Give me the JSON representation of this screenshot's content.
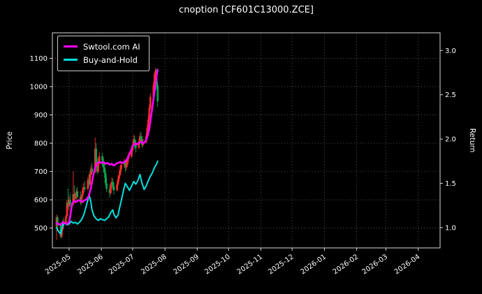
{
  "title": "cnoption [CF601C13000.ZCE]",
  "axes": {
    "left_label": "Price",
    "right_label": "Return"
  },
  "legend": {
    "items": [
      {
        "label": "Swtool.com AI",
        "color": "#ff00ff"
      },
      {
        "label": "Buy-and-Hold",
        "color": "#00e0e0"
      }
    ]
  },
  "chart_data": {
    "type": "candlestick+line",
    "title": "cnoption [CF601C13000.ZCE]",
    "background": "#000000",
    "grid": true,
    "legend_position": "upper left",
    "x_axis": {
      "range_days": [
        0,
        372
      ],
      "epoch": "2025-04-15",
      "tick_days": [
        16,
        47,
        77,
        108,
        139,
        169,
        200,
        230,
        261,
        292,
        320,
        351
      ],
      "tick_labels": [
        "2025-05",
        "2025-06",
        "2025-07",
        "2025-08",
        "2025-09",
        "2025-10",
        "2025-11",
        "2025-12",
        "2026-01",
        "2026-02",
        "2026-03",
        "2026-04"
      ]
    },
    "price_axis": {
      "label": "Price",
      "range": [
        430,
        1190
      ],
      "ticks": [
        500,
        600,
        700,
        800,
        900,
        1000,
        1100
      ],
      "tick_labels": [
        "500",
        "600",
        "700",
        "800",
        "900",
        "1000",
        "1100"
      ]
    },
    "return_axis": {
      "label": "Return",
      "range": [
        0.77,
        3.2
      ],
      "ticks": [
        1.0,
        1.5,
        2.0,
        2.5,
        3.0
      ],
      "tick_labels": [
        "1.0",
        "1.5",
        "2.0",
        "2.5",
        "3.0"
      ]
    },
    "candles": {
      "up_color": "#ff2b2b",
      "down_color": "#00a550",
      "columns": [
        "day",
        "open",
        "high",
        "low",
        "close"
      ],
      "data": [
        [
          4,
          505,
          548,
          458,
          538
        ],
        [
          5,
          538,
          544,
          498,
          508
        ],
        [
          8,
          510,
          520,
          463,
          470
        ],
        [
          9,
          470,
          502,
          465,
          496
        ],
        [
          10,
          496,
          530,
          490,
          524
        ],
        [
          11,
          524,
          536,
          504,
          514
        ],
        [
          13,
          514,
          546,
          510,
          542
        ],
        [
          14,
          542,
          600,
          536,
          590
        ],
        [
          15,
          590,
          640,
          568,
          578
        ],
        [
          16,
          578,
          612,
          560,
          600
        ],
        [
          17,
          600,
          622,
          574,
          584
        ],
        [
          20,
          584,
          700,
          580,
          620
        ],
        [
          21,
          620,
          650,
          594,
          604
        ],
        [
          22,
          604,
          626,
          586,
          616
        ],
        [
          23,
          616,
          640,
          600,
          630
        ],
        [
          24,
          630,
          646,
          604,
          610
        ],
        [
          27,
          610,
          630,
          580,
          590
        ],
        [
          28,
          590,
          620,
          584,
          614
        ],
        [
          29,
          614,
          646,
          608,
          636
        ],
        [
          30,
          636,
          660,
          620,
          644
        ],
        [
          31,
          644,
          666,
          628,
          638
        ],
        [
          34,
          638,
          680,
          634,
          670
        ],
        [
          35,
          670,
          692,
          644,
          654
        ],
        [
          36,
          654,
          700,
          650,
          690
        ],
        [
          37,
          690,
          722,
          680,
          710
        ],
        [
          38,
          710,
          730,
          688,
          698
        ],
        [
          41,
          698,
          820,
          694,
          780
        ],
        [
          42,
          780,
          800,
          718,
          728
        ],
        [
          43,
          728,
          750,
          690,
          700
        ],
        [
          44,
          700,
          746,
          694,
          734
        ],
        [
          45,
          734,
          770,
          724,
          754
        ],
        [
          48,
          754,
          766,
          718,
          738
        ],
        [
          49,
          738,
          750,
          700,
          714
        ],
        [
          50,
          714,
          730,
          678,
          694
        ],
        [
          51,
          694,
          706,
          648,
          658
        ],
        [
          52,
          658,
          680,
          628,
          638
        ],
        [
          55,
          638,
          656,
          608,
          624
        ],
        [
          56,
          624,
          660,
          618,
          648
        ],
        [
          57,
          648,
          680,
          640,
          664
        ],
        [
          58,
          664,
          676,
          634,
          648
        ],
        [
          59,
          648,
          660,
          618,
          634
        ],
        [
          62,
          634,
          666,
          630,
          654
        ],
        [
          63,
          654,
          686,
          648,
          674
        ],
        [
          64,
          674,
          700,
          664,
          688
        ],
        [
          65,
          688,
          720,
          684,
          708
        ],
        [
          66,
          708,
          736,
          698,
          724
        ],
        [
          69,
          724,
          746,
          714,
          734
        ],
        [
          70,
          734,
          740,
          698,
          714
        ],
        [
          71,
          714,
          736,
          704,
          724
        ],
        [
          72,
          724,
          756,
          718,
          744
        ],
        [
          73,
          744,
          766,
          734,
          754
        ],
        [
          76,
          754,
          790,
          748,
          774
        ],
        [
          77,
          774,
          806,
          768,
          794
        ],
        [
          78,
          794,
          830,
          788,
          814
        ],
        [
          79,
          814,
          826,
          778,
          794
        ],
        [
          80,
          794,
          810,
          768,
          784
        ],
        [
          83,
          784,
          816,
          778,
          804
        ],
        [
          84,
          804,
          836,
          798,
          824
        ],
        [
          85,
          824,
          840,
          798,
          814
        ],
        [
          86,
          814,
          826,
          784,
          794
        ],
        [
          87,
          794,
          816,
          788,
          804
        ],
        [
          90,
          804,
          836,
          798,
          824
        ],
        [
          91,
          824,
          866,
          818,
          854
        ],
        [
          92,
          854,
          896,
          848,
          884
        ],
        [
          93,
          884,
          936,
          878,
          924
        ],
        [
          94,
          924,
          976,
          918,
          964
        ],
        [
          97,
          964,
          1016,
          958,
          1004
        ],
        [
          98,
          1004,
          1052,
          998,
          1044
        ],
        [
          99,
          1044,
          1066,
          1018,
          1058
        ],
        [
          100,
          1058,
          1064,
          988,
          1004
        ],
        [
          101,
          1004,
          1016,
          928,
          948
        ]
      ]
    },
    "series": [
      {
        "name": "Swtool.com AI",
        "color": "#ff00ff",
        "axis": "return",
        "line_width": 2.6,
        "points": [
          [
            4,
            1.05
          ],
          [
            6,
            1.04
          ],
          [
            8,
            1.03
          ],
          [
            10,
            1.06
          ],
          [
            12,
            1.05
          ],
          [
            14,
            1.04
          ],
          [
            16,
            1.06
          ],
          [
            17,
            1.12
          ],
          [
            18,
            1.2
          ],
          [
            19,
            1.27
          ],
          [
            21,
            1.3
          ],
          [
            23,
            1.29
          ],
          [
            25,
            1.31
          ],
          [
            27,
            1.3
          ],
          [
            29,
            1.29
          ],
          [
            31,
            1.31
          ],
          [
            33,
            1.32
          ],
          [
            35,
            1.36
          ],
          [
            37,
            1.45
          ],
          [
            39,
            1.58
          ],
          [
            41,
            1.68
          ],
          [
            43,
            1.73
          ],
          [
            45,
            1.74
          ],
          [
            47,
            1.73
          ],
          [
            49,
            1.74
          ],
          [
            51,
            1.72
          ],
          [
            53,
            1.73
          ],
          [
            55,
            1.71
          ],
          [
            57,
            1.72
          ],
          [
            59,
            1.7
          ],
          [
            61,
            1.72
          ],
          [
            63,
            1.73
          ],
          [
            65,
            1.74
          ],
          [
            67,
            1.73
          ],
          [
            69,
            1.74
          ],
          [
            71,
            1.76
          ],
          [
            73,
            1.8
          ],
          [
            75,
            1.86
          ],
          [
            77,
            1.92
          ],
          [
            79,
            1.95
          ],
          [
            81,
            1.94
          ],
          [
            83,
            1.96
          ],
          [
            85,
            1.97
          ],
          [
            87,
            1.95
          ],
          [
            89,
            1.97
          ],
          [
            91,
            2.02
          ],
          [
            93,
            2.12
          ],
          [
            95,
            2.28
          ],
          [
            97,
            2.45
          ],
          [
            99,
            2.62
          ],
          [
            100,
            2.72
          ],
          [
            101,
            2.78
          ]
        ]
      },
      {
        "name": "Buy-and-Hold",
        "color": "#00e0e0",
        "axis": "return",
        "line_width": 2.0,
        "points": [
          [
            4,
            1.0
          ],
          [
            5,
            0.97
          ],
          [
            7,
            0.94
          ],
          [
            8,
            0.93
          ],
          [
            9,
            0.98
          ],
          [
            10,
            1.03
          ],
          [
            12,
            1.05
          ],
          [
            14,
            1.03
          ],
          [
            16,
            1.04
          ],
          [
            18,
            1.07
          ],
          [
            20,
            1.05
          ],
          [
            22,
            1.06
          ],
          [
            24,
            1.04
          ],
          [
            26,
            1.06
          ],
          [
            28,
            1.09
          ],
          [
            30,
            1.14
          ],
          [
            32,
            1.22
          ],
          [
            34,
            1.31
          ],
          [
            35,
            1.36
          ],
          [
            36,
            1.34
          ],
          [
            37,
            1.28
          ],
          [
            38,
            1.2
          ],
          [
            40,
            1.13
          ],
          [
            42,
            1.1
          ],
          [
            44,
            1.08
          ],
          [
            46,
            1.1
          ],
          [
            48,
            1.09
          ],
          [
            50,
            1.08
          ],
          [
            52,
            1.1
          ],
          [
            54,
            1.12
          ],
          [
            56,
            1.17
          ],
          [
            58,
            1.2
          ],
          [
            59,
            1.15
          ],
          [
            61,
            1.11
          ],
          [
            63,
            1.14
          ],
          [
            64,
            1.2
          ],
          [
            66,
            1.3
          ],
          [
            68,
            1.41
          ],
          [
            70,
            1.5
          ],
          [
            72,
            1.46
          ],
          [
            74,
            1.42
          ],
          [
            76,
            1.47
          ],
          [
            78,
            1.52
          ],
          [
            80,
            1.49
          ],
          [
            82,
            1.53
          ],
          [
            84,
            1.6
          ],
          [
            86,
            1.5
          ],
          [
            88,
            1.43
          ],
          [
            90,
            1.47
          ],
          [
            92,
            1.53
          ],
          [
            94,
            1.58
          ],
          [
            96,
            1.62
          ],
          [
            98,
            1.68
          ],
          [
            100,
            1.72
          ],
          [
            101,
            1.75
          ]
        ]
      }
    ]
  }
}
